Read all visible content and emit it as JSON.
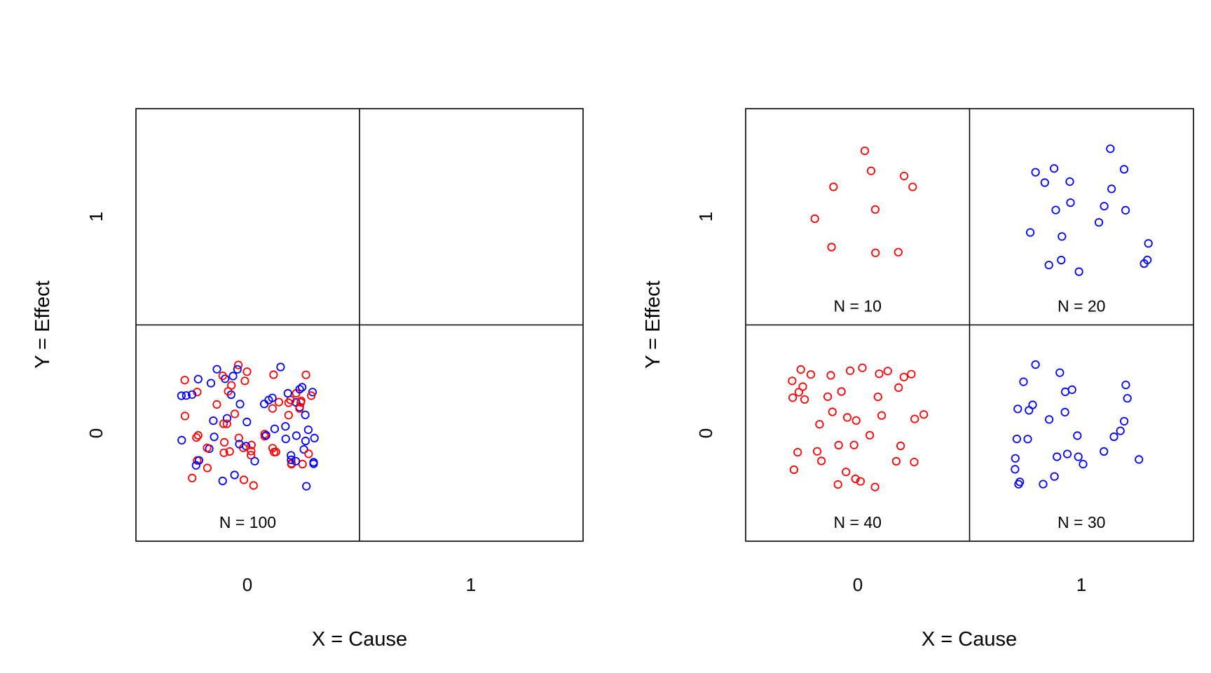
{
  "colors": {
    "red": "#ff0000",
    "blue": "#0000ff",
    "frame": "#000000"
  },
  "chart_data": [
    {
      "type": "scatter",
      "title": "",
      "xlabel": "X = Cause",
      "ylabel": "Y = Effect",
      "x_categories": [
        "0",
        "1"
      ],
      "y_categories": [
        "0",
        "1"
      ],
      "cells": [
        {
          "x": 0,
          "y": 0,
          "label": "N =  100",
          "n_red": 50,
          "n_blue": 50
        },
        {
          "x": 1,
          "y": 0,
          "label": "",
          "n_red": 0,
          "n_blue": 0
        },
        {
          "x": 0,
          "y": 1,
          "label": "",
          "n_red": 0,
          "n_blue": 0
        },
        {
          "x": 1,
          "y": 1,
          "label": "",
          "n_red": 0,
          "n_blue": 0
        }
      ]
    },
    {
      "type": "scatter",
      "title": "",
      "xlabel": "X = Cause",
      "ylabel": "Y = Effect",
      "x_categories": [
        "0",
        "1"
      ],
      "y_categories": [
        "0",
        "1"
      ],
      "cells": [
        {
          "x": 0,
          "y": 0,
          "label": "N =  40",
          "n_red": 40,
          "n_blue": 0
        },
        {
          "x": 1,
          "y": 0,
          "label": "N =  30",
          "n_red": 0,
          "n_blue": 30
        },
        {
          "x": 0,
          "y": 1,
          "label": "N =  10",
          "n_red": 10,
          "n_blue": 0
        },
        {
          "x": 1,
          "y": 1,
          "label": "N =  20",
          "n_red": 0,
          "n_blue": 20
        }
      ]
    }
  ]
}
